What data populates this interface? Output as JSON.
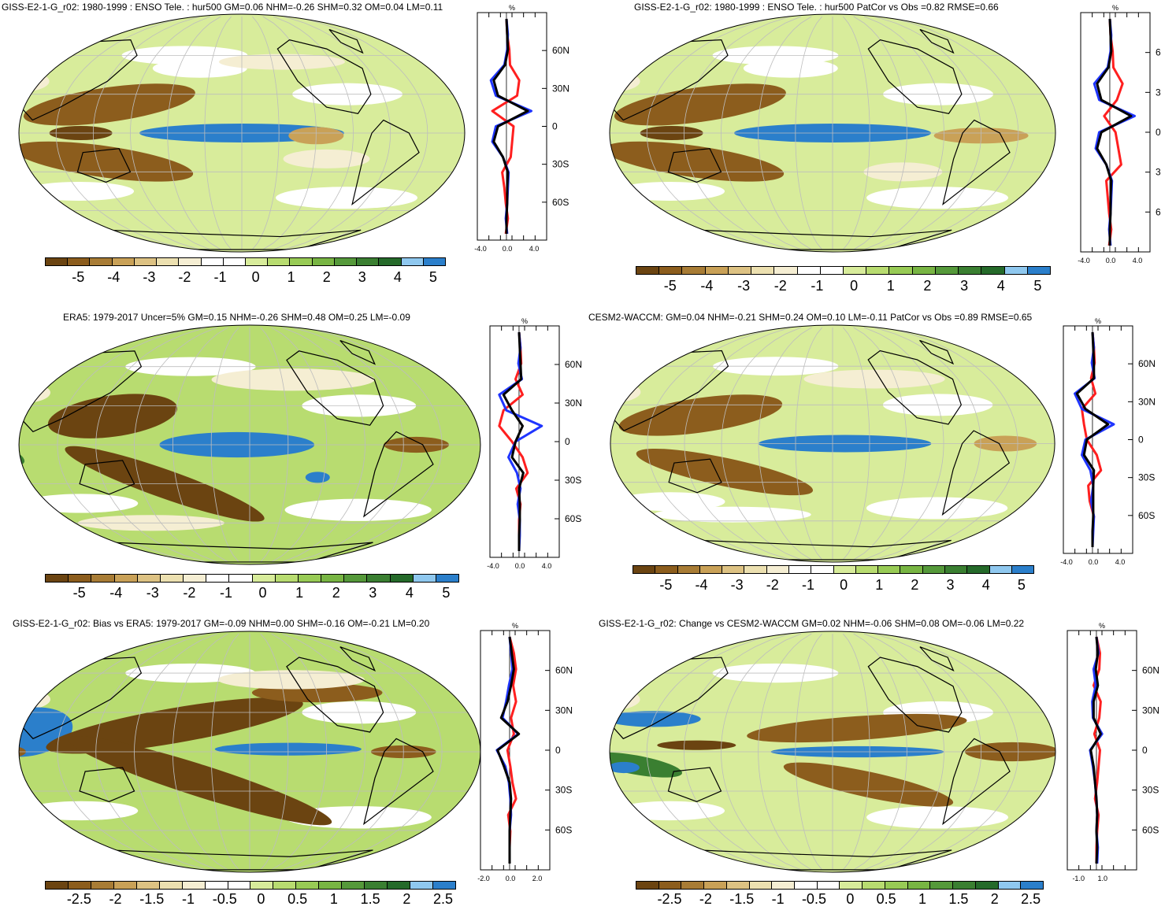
{
  "palette": {
    "diverging": [
      "#6b4411",
      "#8c5d1d",
      "#a87c35",
      "#c9a157",
      "#ddc283",
      "#ece0b0",
      "#f5eed3",
      "#ffffff",
      "#ffffff",
      "#d8ec9b",
      "#b8dc70",
      "#98cb55",
      "#78b543",
      "#55993a",
      "#3a7f31",
      "#256a2a",
      "#8fc8ef",
      "#2b7fcb"
    ],
    "model_line": "#000000",
    "obs_line": "#1f35ff",
    "diff_line": "#ff1f1f"
  },
  "panels": [
    {
      "id": "gissmodel",
      "title": "GISS-E2-1-G_r02: 1980-1999 : ENSO Tele. : hur500 GM=0.06 NHM=-0.26 SHM=0.32 OM=0.04 LM=0.11",
      "colorbar_labels": [
        "-5",
        "-4",
        "-3",
        "-2",
        "-1",
        "0",
        "1",
        "2",
        "3",
        "4",
        "5"
      ],
      "profile": {
        "unit": "%",
        "lat_labels": [
          "60N",
          "30N",
          "0",
          "30S",
          "60S"
        ],
        "x_labels": [
          "-4.0",
          "0.0",
          "4.0"
        ]
      }
    },
    {
      "id": "gisspatcor",
      "title": "GISS-E2-1-G_r02: 1980-1999 : ENSO Tele. : hur500 PatCor vs Obs =0.82 RMSE=0.66",
      "colorbar_labels": [
        "-5",
        "-4",
        "-3",
        "-2",
        "-1",
        "0",
        "1",
        "2",
        "3",
        "4",
        "5"
      ],
      "profile": {
        "unit": "%",
        "lat_labels": [
          "6",
          "3",
          "0",
          "3",
          "6"
        ],
        "x_labels": [
          "-4.0",
          "0.0",
          "4.0"
        ]
      }
    },
    {
      "id": "era5",
      "title": "ERA5: 1979-2017 Uncer=5% GM=0.15 NHM=-0.26 SHM=0.48 OM=0.25 LM=-0.09",
      "colorbar_labels": [
        "-5",
        "-4",
        "-3",
        "-2",
        "-1",
        "0",
        "1",
        "2",
        "3",
        "4",
        "5"
      ],
      "profile": {
        "unit": "%",
        "lat_labels": [
          "60N",
          "30N",
          "0",
          "30S",
          "60S"
        ],
        "x_labels": [
          "-4.0",
          "0.0",
          "4.0"
        ]
      }
    },
    {
      "id": "cesm2",
      "title": "CESM2-WACCM: GM=0.04 NHM=-0.21 SHM=0.24 OM=0.10 LM=-0.11 PatCor vs Obs =0.89 RMSE=0.65",
      "colorbar_labels": [
        "-5",
        "-4",
        "-3",
        "-2",
        "-1",
        "0",
        "1",
        "2",
        "3",
        "4",
        "5"
      ],
      "profile": {
        "unit": "%",
        "lat_labels": [
          "60N",
          "30N",
          "0",
          "30S",
          "60S"
        ],
        "x_labels": [
          "-4.0",
          "0.0",
          "4.0"
        ]
      }
    },
    {
      "id": "bias",
      "title": "GISS-E2-1-G_r02: Bias vs ERA5: 1979-2017 GM=-0.09 NHM=0.00 SHM=-0.16 OM=-0.21 LM=0.20",
      "colorbar_labels": [
        "-2.5",
        "-2",
        "-1.5",
        "-1",
        "-0.5",
        "0",
        "0.5",
        "1",
        "1.5",
        "2",
        "2.5"
      ],
      "profile": {
        "unit": "%",
        "lat_labels": [
          "60N",
          "30N",
          "0",
          "30S",
          "60S"
        ],
        "x_labels": [
          "-2.0",
          "0.0",
          "2.0"
        ]
      }
    },
    {
      "id": "change",
      "title": "GISS-E2-1-G_r02: Change vs CESM2-WACCM GM=0.02 NHM=-0.06 SHM=0.08 OM=-0.06 LM=0.22",
      "colorbar_labels": [
        "-2.5",
        "-2",
        "-1.5",
        "-1",
        "-0.5",
        "0",
        "0.5",
        "1",
        "1.5",
        "2",
        "2.5"
      ],
      "profile": {
        "unit": "%",
        "lat_labels": [
          "60N",
          "30N",
          "0",
          "30S",
          "60S"
        ],
        "x_labels": [
          "-1.0",
          "1.0"
        ]
      }
    }
  ]
}
